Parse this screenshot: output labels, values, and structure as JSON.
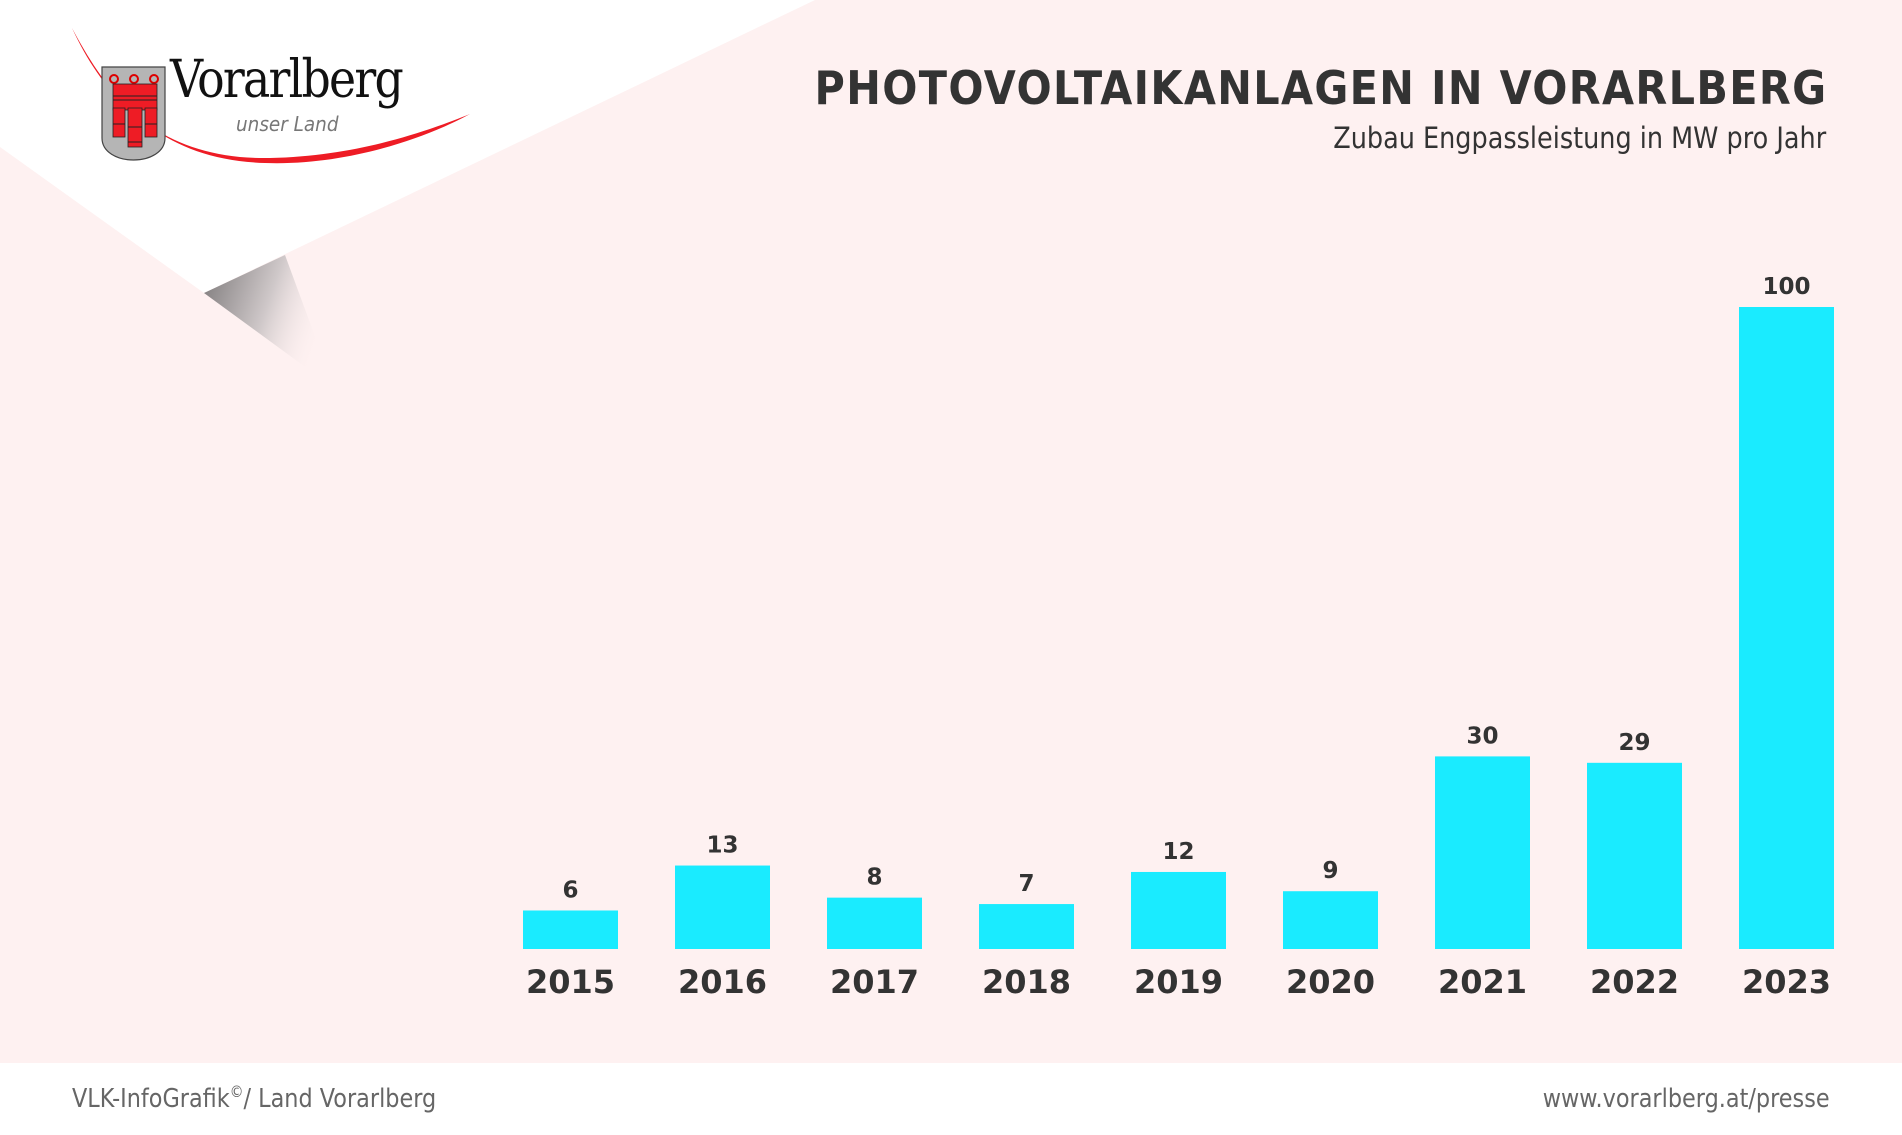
{
  "logo": {
    "name": "Vorarlberg",
    "tagline": "unser Land"
  },
  "header": {
    "title": "PHOTOVOLTAIKANLAGEN IN VORARLBERG",
    "subtitle": "Zubau Engpassleistung in MW pro Jahr"
  },
  "colors": {
    "background": "#fef1f1",
    "bar": "#1aebff",
    "text": "#333333",
    "footer_text": "#666666",
    "logo_red": "#ee1c25"
  },
  "footer": {
    "source_prefix": "VLK-InfoGrafik",
    "copyright_mark": "©",
    "source_suffix": "/ Land Vorarlberg",
    "url": "www.vorarlberg.at/presse"
  },
  "chart_data": {
    "type": "bar",
    "title": "PHOTOVOLTAIKANLAGEN IN VORARLBERG",
    "subtitle": "Zubau Engpassleistung in MW pro Jahr",
    "xlabel": "",
    "ylabel": "MW",
    "categories": [
      "2015",
      "2016",
      "2017",
      "2018",
      "2019",
      "2020",
      "2021",
      "2022",
      "2023"
    ],
    "values": [
      6,
      13,
      8,
      7,
      12,
      9,
      30,
      29,
      100
    ],
    "data_labels": [
      "6",
      "13",
      "8",
      "7",
      "12",
      "9",
      "30",
      "29",
      "100"
    ],
    "ylim": [
      0,
      100
    ],
    "grid": false,
    "legend": "none"
  }
}
